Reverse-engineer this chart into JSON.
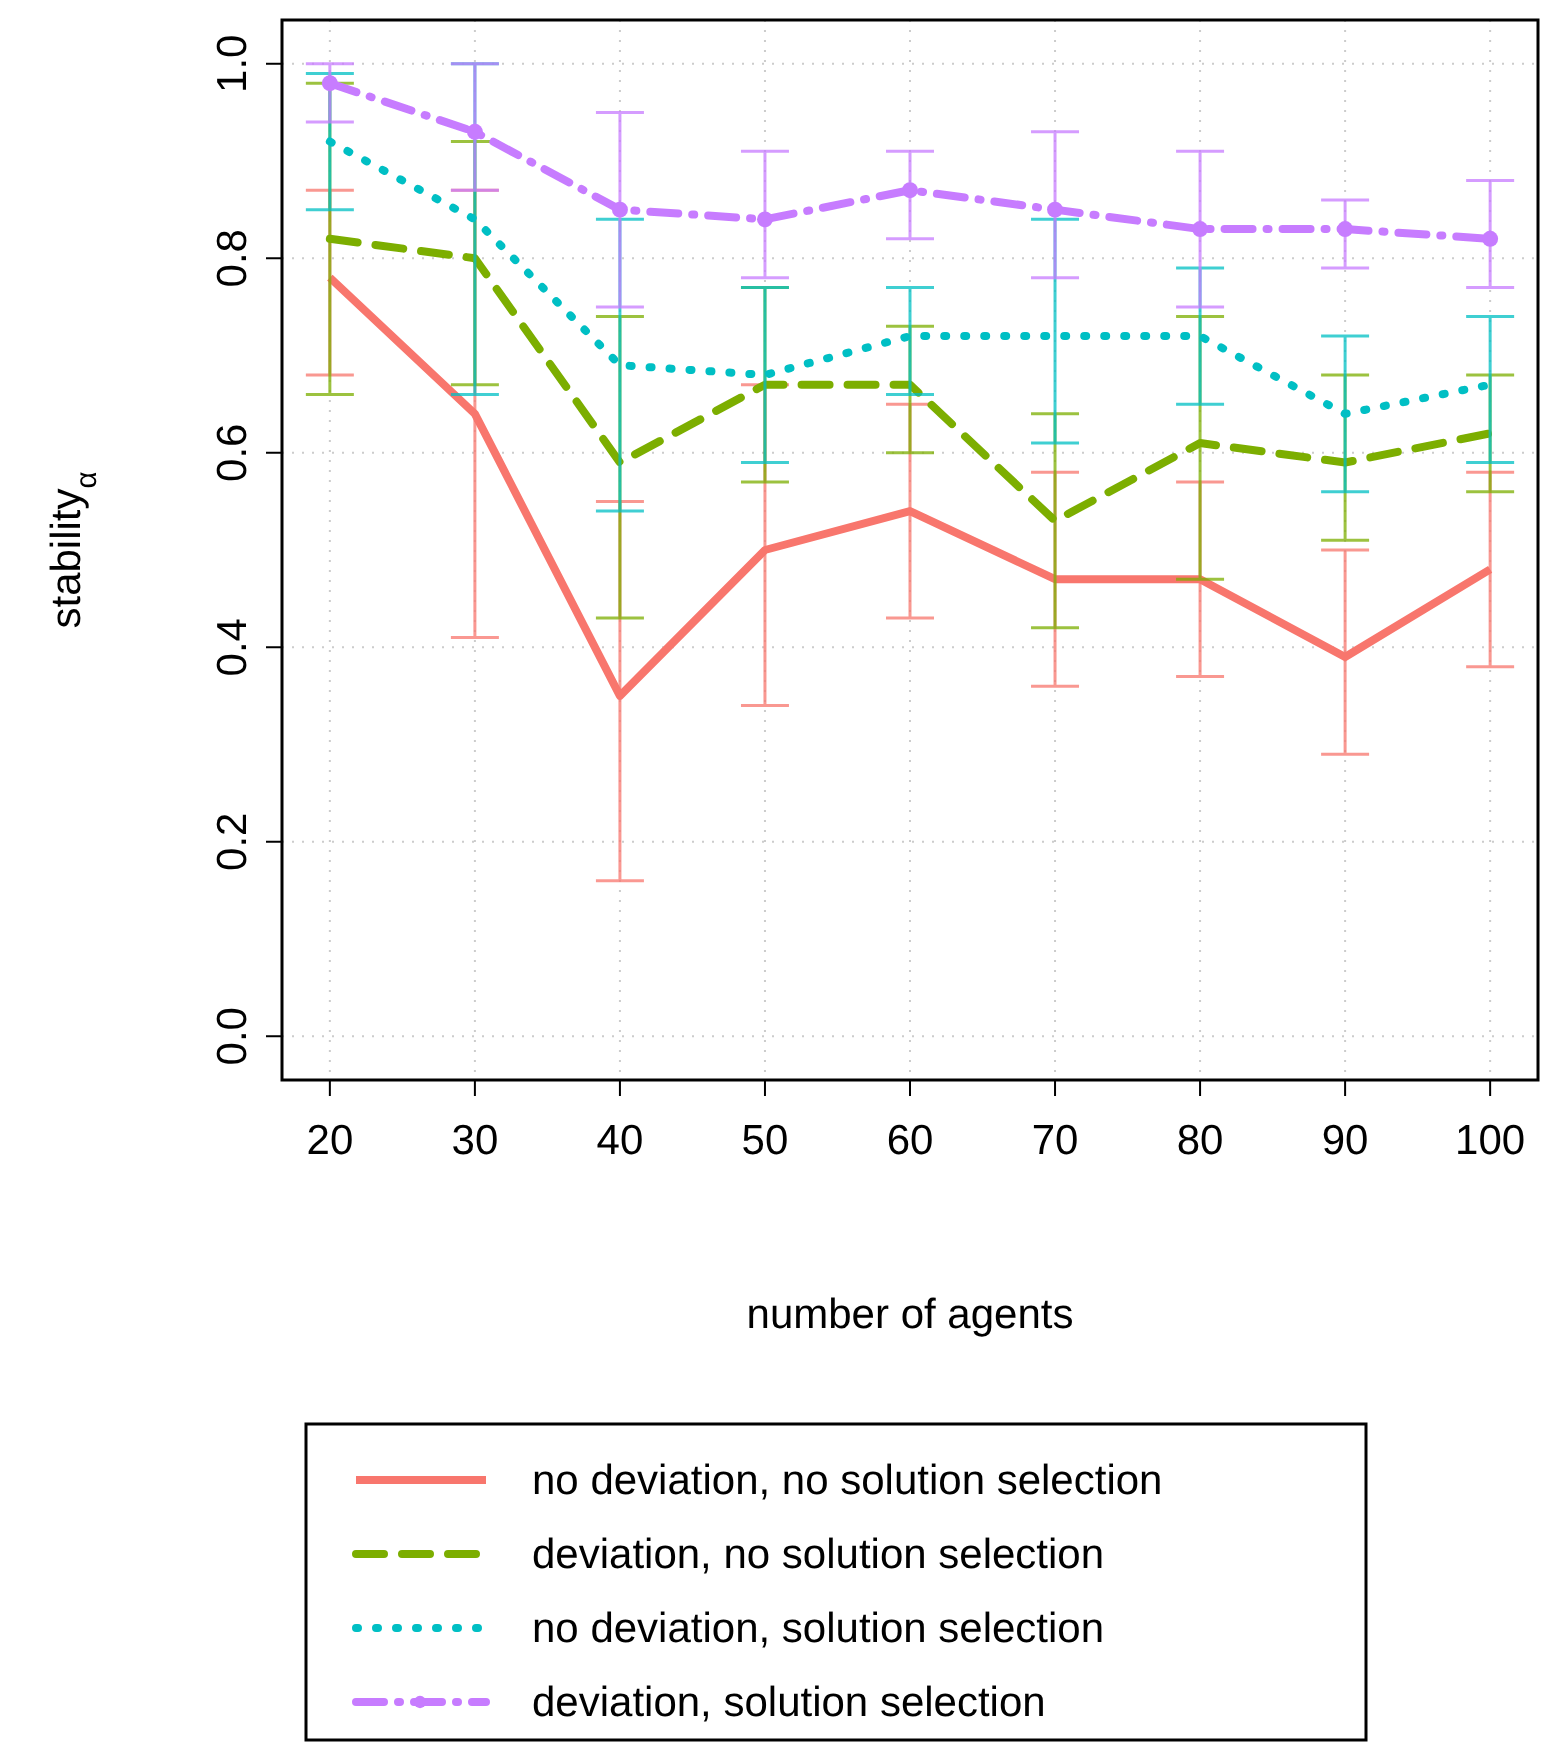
{
  "chart_data": {
    "type": "line",
    "xlabel": "number of agents",
    "ylabel": "stability$_{α}$",
    "x": [
      20,
      30,
      40,
      50,
      60,
      70,
      80,
      90,
      100
    ],
    "xlim": [
      16.7,
      103.3
    ],
    "xticks": [
      20,
      30,
      40,
      50,
      60,
      70,
      80,
      90,
      100
    ],
    "ylim": [
      -0.045,
      1.045
    ],
    "yticks": [
      {
        "value": 0,
        "label": "0.0"
      },
      {
        "value": 0.2,
        "label": "0.2"
      },
      {
        "value": 0.4,
        "label": "0.4"
      },
      {
        "value": 0.6,
        "label": "0.6"
      },
      {
        "value": 0.8,
        "label": "0.8"
      },
      {
        "value": 1,
        "label": "1.0"
      }
    ],
    "grid": true,
    "legend": "bottom",
    "series": [
      {
        "name": "no deviation, no solution selection",
        "color": "#f8766d",
        "line_style": "solid",
        "marker": "none",
        "values": [
          0.78,
          0.64,
          0.35,
          0.5,
          0.54,
          0.47,
          0.47,
          0.39,
          0.48
        ],
        "errors": [
          [
            0.68,
            0.87
          ],
          [
            0.41,
            0.87
          ],
          [
            0.16,
            0.55
          ],
          [
            0.34,
            0.67
          ],
          [
            0.43,
            0.65
          ],
          [
            0.36,
            0.58
          ],
          [
            0.37,
            0.57
          ],
          [
            0.29,
            0.5
          ],
          [
            0.38,
            0.58
          ]
        ]
      },
      {
        "name": "deviation, no solution selection",
        "color": "#7cae00",
        "line_style": "dashed",
        "marker": "none",
        "values": [
          0.82,
          0.8,
          0.59,
          0.67,
          0.67,
          0.53,
          0.61,
          0.59,
          0.62
        ],
        "errors": [
          [
            0.66,
            0.98
          ],
          [
            0.67,
            0.92
          ],
          [
            0.43,
            0.74
          ],
          [
            0.57,
            0.77
          ],
          [
            0.6,
            0.73
          ],
          [
            0.42,
            0.64
          ],
          [
            0.47,
            0.74
          ],
          [
            0.51,
            0.68
          ],
          [
            0.56,
            0.68
          ]
        ]
      },
      {
        "name": "no deviation, solution selection",
        "color": "#00bfc4",
        "line_style": "dotted",
        "marker": "none",
        "values": [
          0.92,
          0.84,
          0.69,
          0.68,
          0.72,
          0.72,
          0.72,
          0.64,
          0.67
        ],
        "errors": [
          [
            0.85,
            0.99
          ],
          [
            0.66,
            1.0
          ],
          [
            0.54,
            0.84
          ],
          [
            0.59,
            0.77
          ],
          [
            0.66,
            0.77
          ],
          [
            0.61,
            0.84
          ],
          [
            0.65,
            0.79
          ],
          [
            0.56,
            0.72
          ],
          [
            0.59,
            0.74
          ]
        ]
      },
      {
        "name": "deviation, solution selection",
        "color": "#c77cff",
        "line_style": "dashdot",
        "marker": "circle",
        "values": [
          0.98,
          0.93,
          0.85,
          0.84,
          0.87,
          0.85,
          0.83,
          0.83,
          0.82
        ],
        "errors": [
          [
            0.94,
            1.0
          ],
          [
            0.87,
            1.0
          ],
          [
            0.75,
            0.95
          ],
          [
            0.78,
            0.91
          ],
          [
            0.82,
            0.91
          ],
          [
            0.78,
            0.93
          ],
          [
            0.75,
            0.91
          ],
          [
            0.79,
            0.86
          ],
          [
            0.77,
            0.88
          ]
        ]
      }
    ]
  }
}
